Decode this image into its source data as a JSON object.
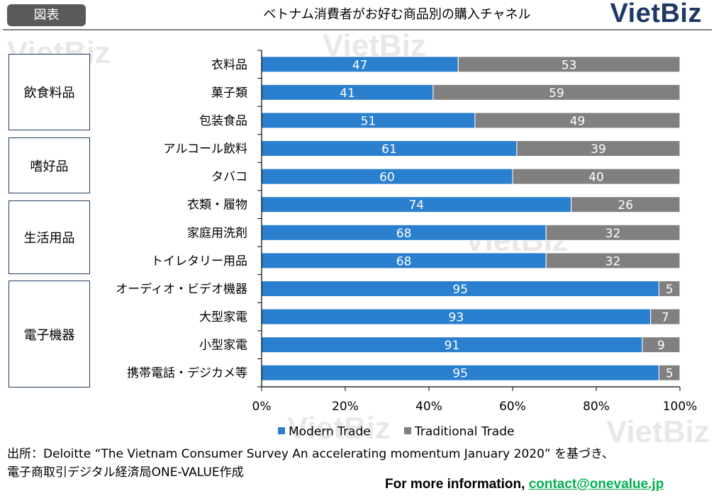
{
  "header": {
    "tag": "図表",
    "title": "ベトナム消費者がお好む商品別の購入チャネル",
    "logo": "VietBiz"
  },
  "watermark": "VietBiz",
  "groups": [
    "飲食料品",
    "嗜好品",
    "生活用品",
    "電子機器"
  ],
  "colors": {
    "modern": "#2a7fce",
    "traditional": "#808080",
    "logo": "#1f3864",
    "link": "#00b050"
  },
  "chart_data": {
    "type": "bar",
    "orientation": "horizontal",
    "stacked": true,
    "categories": [
      "衣料品",
      "菓子類",
      "包装食品",
      "アルコール飲料",
      "タバコ",
      "衣類・履物",
      "家庭用洗剤",
      "トイレタリー用品",
      "オーディオ・ビデオ機器",
      "大型家電",
      "小型家電",
      "携帯電話・デジカメ等"
    ],
    "series": [
      {
        "name": "Modern Trade",
        "values": [
          47,
          41,
          51,
          61,
          60,
          74,
          68,
          68,
          95,
          93,
          91,
          95
        ]
      },
      {
        "name": "Traditional Trade",
        "values": [
          53,
          59,
          49,
          39,
          40,
          26,
          32,
          32,
          5,
          7,
          9,
          5
        ]
      }
    ],
    "xticks": [
      "0%",
      "20%",
      "40%",
      "60%",
      "80%",
      "100%"
    ],
    "xlim": [
      0,
      100
    ],
    "legend": "bottom"
  },
  "source": {
    "line1": "出所：Deloitte “The Vietnam Consumer Survey An accelerating momentum January 2020” を基づき、",
    "line2": "電子商取引デジタル経済局ONE-VALUE作成"
  },
  "footer": {
    "prefix": "For more information, ",
    "email": "contact@onevalue.jp"
  }
}
